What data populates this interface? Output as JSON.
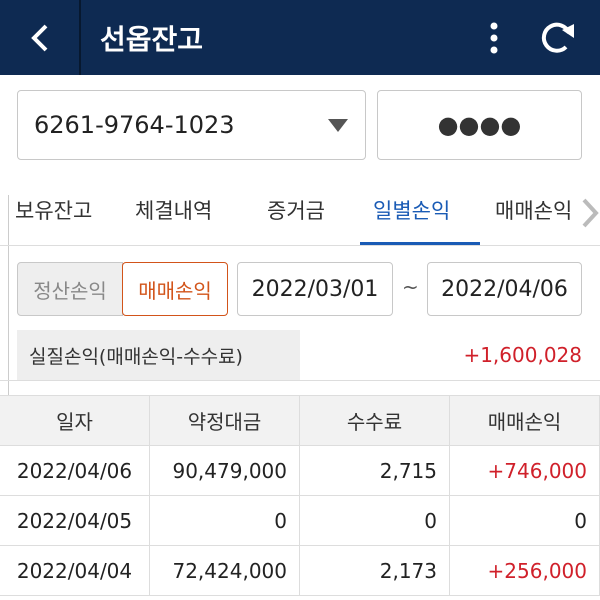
{
  "header": {
    "title": "선옵잔고"
  },
  "account": {
    "number": "6261-9764-1023",
    "password": "●●●●"
  },
  "tabs": [
    "보유잔고",
    "체결내역",
    "증거금",
    "일별손익",
    "매매손익"
  ],
  "toggle": [
    "정산손익",
    "매매손익"
  ],
  "period": {
    "from": "2022/03/01",
    "separator": "~",
    "to": "2022/04/06"
  },
  "summary": {
    "label": "실질손익(매매손익-수수료)",
    "value": "+1,600,028"
  },
  "table": {
    "columns": [
      "일자",
      "약정대금",
      "수수료",
      "매매손익"
    ],
    "rows": [
      [
        "2022/04/06",
        "90,479,000",
        "2,715",
        "+746,000"
      ],
      [
        "2022/04/05",
        "0",
        "0",
        "0"
      ],
      [
        "2022/04/04",
        "72,424,000",
        "2,173",
        "+256,000"
      ]
    ]
  }
}
